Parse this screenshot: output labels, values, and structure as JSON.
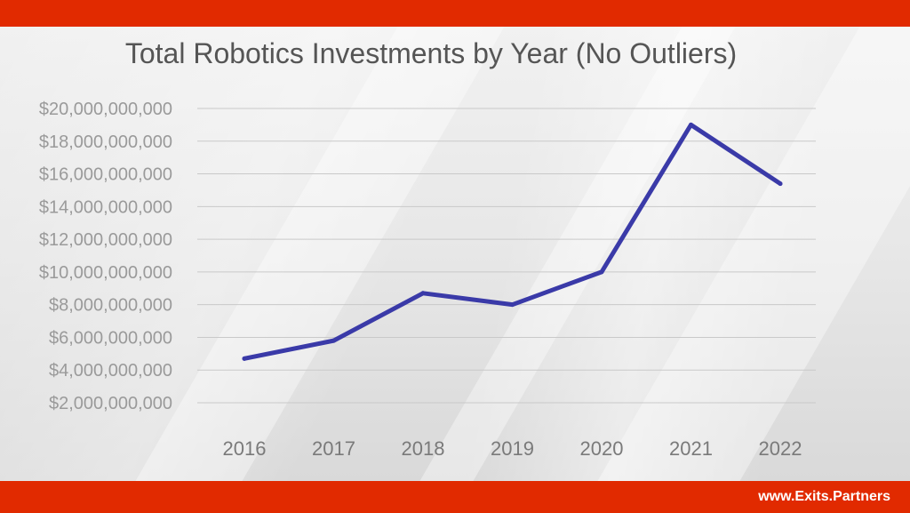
{
  "chart_data": {
    "type": "line",
    "title": "Total Robotics Investments by Year (No Outliers)",
    "xlabel": "",
    "ylabel": "",
    "categories": [
      "2016",
      "2017",
      "2018",
      "2019",
      "2020",
      "2021",
      "2022"
    ],
    "series": [
      {
        "values": [
          4700000000,
          5800000000,
          8700000000,
          8000000000,
          10000000000,
          19000000000,
          15400000000
        ]
      }
    ],
    "ylim": [
      0,
      20000000000
    ],
    "yticks": [
      2000000000,
      4000000000,
      6000000000,
      8000000000,
      10000000000,
      12000000000,
      14000000000,
      16000000000,
      18000000000,
      20000000000
    ],
    "ytick_labels": [
      "$2,000,000,000",
      "$4,000,000,000",
      "$6,000,000,000",
      "$8,000,000,000",
      "$10,000,000,000",
      "$12,000,000,000",
      "$14,000,000,000",
      "$16,000,000,000",
      "$18,000,000,000",
      "$20,000,000,000"
    ],
    "grid": true,
    "legend": "none",
    "line_color": "#3a3aa8"
  },
  "footer": {
    "url": "www.Exits.Partners"
  },
  "colors": {
    "bar": "#e12a00",
    "grid": "#c9c9c9"
  }
}
